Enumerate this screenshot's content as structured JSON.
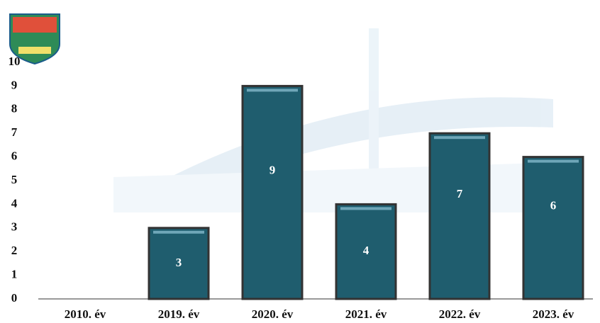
{
  "chart_data": {
    "type": "bar",
    "categories": [
      "2010. év",
      "2019. év",
      "2020. év",
      "2021. év",
      "2022. év",
      "2023. év"
    ],
    "values": [
      null,
      3,
      9,
      4,
      7,
      6
    ],
    "color": "#1f5d6e",
    "ylim": [
      0,
      10
    ],
    "yticks": [
      0,
      1,
      2,
      3,
      4,
      5,
      6,
      7,
      8,
      9,
      10
    ]
  }
}
